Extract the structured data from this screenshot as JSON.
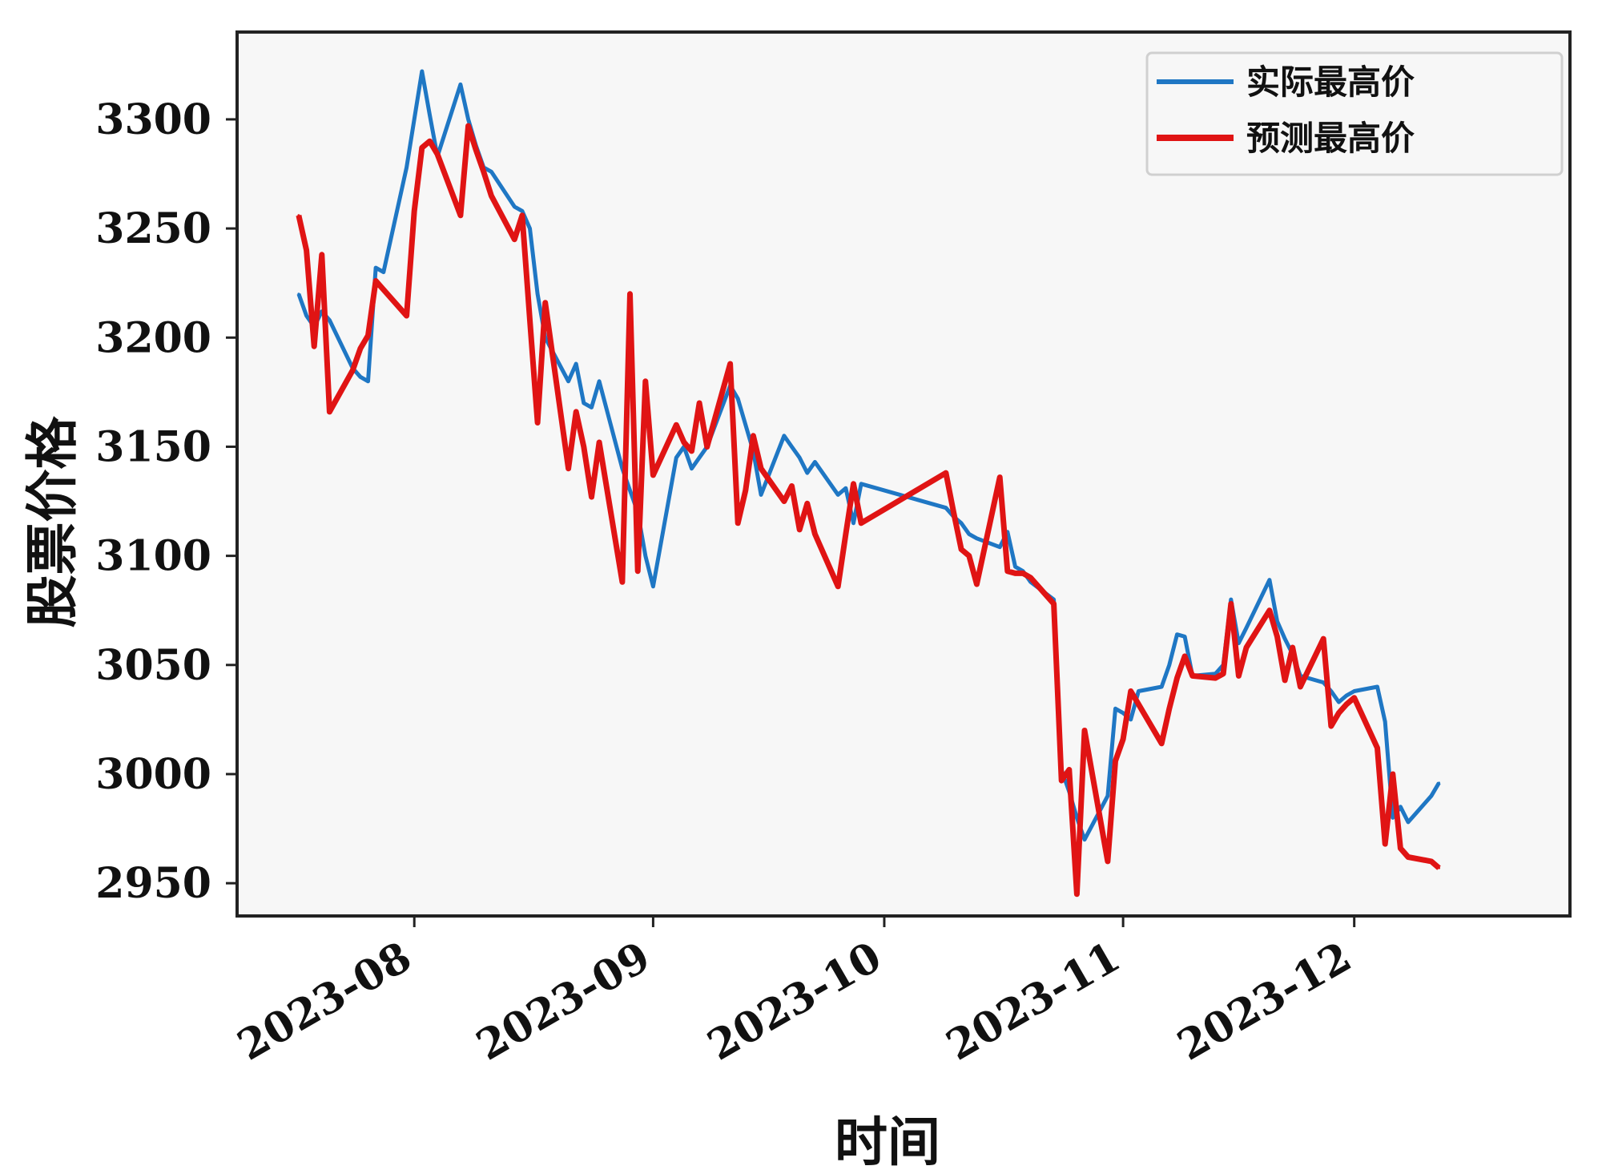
{
  "chart_data": {
    "type": "line",
    "xlabel": "时间",
    "ylabel": "股票价格",
    "ylim": [
      2935,
      3340
    ],
    "xlim": [
      "2023-07-09",
      "2023-12-29"
    ],
    "grid": false,
    "legend_position": "top-right",
    "x_ticks": [
      "2023-08",
      "2023-09",
      "2023-10",
      "2023-11",
      "2023-12"
    ],
    "y_ticks": [
      2950,
      3000,
      3050,
      3100,
      3150,
      3200,
      3250,
      3300
    ],
    "colors": {
      "actual": "#1f77c4",
      "predicted": "#e01414"
    },
    "series": [
      {
        "name": "实际最高价",
        "points": [
          [
            "2023-07-17",
            3220
          ],
          [
            "2023-07-18",
            3210
          ],
          [
            "2023-07-19",
            3205
          ],
          [
            "2023-07-20",
            3212
          ],
          [
            "2023-07-21",
            3208
          ],
          [
            "2023-07-24",
            3186
          ],
          [
            "2023-07-25",
            3182
          ],
          [
            "2023-07-26",
            3180
          ],
          [
            "2023-07-27",
            3232
          ],
          [
            "2023-07-28",
            3230
          ],
          [
            "2023-07-31",
            3278
          ],
          [
            "2023-08-01",
            3300
          ],
          [
            "2023-08-02",
            3322
          ],
          [
            "2023-08-03",
            3302
          ],
          [
            "2023-08-04",
            3283
          ],
          [
            "2023-08-07",
            3316
          ],
          [
            "2023-08-08",
            3300
          ],
          [
            "2023-08-09",
            3288
          ],
          [
            "2023-08-10",
            3278
          ],
          [
            "2023-08-11",
            3276
          ],
          [
            "2023-08-14",
            3260
          ],
          [
            "2023-08-15",
            3258
          ],
          [
            "2023-08-16",
            3250
          ],
          [
            "2023-08-17",
            3220
          ],
          [
            "2023-08-18",
            3200
          ],
          [
            "2023-08-21",
            3180
          ],
          [
            "2023-08-22",
            3188
          ],
          [
            "2023-08-23",
            3170
          ],
          [
            "2023-08-24",
            3168
          ],
          [
            "2023-08-25",
            3180
          ],
          [
            "2023-08-28",
            3140
          ],
          [
            "2023-08-29",
            3130
          ],
          [
            "2023-08-30",
            3120
          ],
          [
            "2023-08-31",
            3100
          ],
          [
            "2023-09-01",
            3086
          ],
          [
            "2023-09-04",
            3145
          ],
          [
            "2023-09-05",
            3150
          ],
          [
            "2023-09-06",
            3140
          ],
          [
            "2023-09-07",
            3145
          ],
          [
            "2023-09-08",
            3150
          ],
          [
            "2023-09-11",
            3178
          ],
          [
            "2023-09-12",
            3172
          ],
          [
            "2023-09-13",
            3160
          ],
          [
            "2023-09-14",
            3148
          ],
          [
            "2023-09-15",
            3128
          ],
          [
            "2023-09-18",
            3155
          ],
          [
            "2023-09-19",
            3150
          ],
          [
            "2023-09-20",
            3145
          ],
          [
            "2023-09-21",
            3138
          ],
          [
            "2023-09-22",
            3143
          ],
          [
            "2023-09-25",
            3128
          ],
          [
            "2023-09-26",
            3131
          ],
          [
            "2023-09-27",
            3115
          ],
          [
            "2023-09-28",
            3133
          ],
          [
            "2023-10-09",
            3122
          ],
          [
            "2023-10-10",
            3118
          ],
          [
            "2023-10-11",
            3115
          ],
          [
            "2023-10-12",
            3110
          ],
          [
            "2023-10-13",
            3108
          ],
          [
            "2023-10-16",
            3104
          ],
          [
            "2023-10-17",
            3111
          ],
          [
            "2023-10-18",
            3095
          ],
          [
            "2023-10-19",
            3093
          ],
          [
            "2023-10-20",
            3088
          ],
          [
            "2023-10-23",
            3080
          ],
          [
            "2023-10-24",
            3002
          ],
          [
            "2023-10-25",
            2992
          ],
          [
            "2023-10-26",
            2980
          ],
          [
            "2023-10-27",
            2970
          ],
          [
            "2023-10-30",
            2990
          ],
          [
            "2023-10-31",
            3030
          ],
          [
            "2023-11-01",
            3028
          ],
          [
            "2023-11-02",
            3025
          ],
          [
            "2023-11-03",
            3038
          ],
          [
            "2023-11-06",
            3040
          ],
          [
            "2023-11-07",
            3050
          ],
          [
            "2023-11-08",
            3064
          ],
          [
            "2023-11-09",
            3063
          ],
          [
            "2023-11-10",
            3045
          ],
          [
            "2023-11-13",
            3046
          ],
          [
            "2023-11-14",
            3050
          ],
          [
            "2023-11-15",
            3080
          ],
          [
            "2023-11-16",
            3060
          ],
          [
            "2023-11-17",
            3067
          ],
          [
            "2023-11-20",
            3089
          ],
          [
            "2023-11-21",
            3070
          ],
          [
            "2023-11-22",
            3062
          ],
          [
            "2023-11-23",
            3055
          ],
          [
            "2023-11-24",
            3045
          ],
          [
            "2023-11-27",
            3042
          ],
          [
            "2023-11-28",
            3038
          ],
          [
            "2023-11-29",
            3033
          ],
          [
            "2023-11-30",
            3036
          ],
          [
            "2023-12-01",
            3038
          ],
          [
            "2023-12-04",
            3040
          ],
          [
            "2023-12-05",
            3024
          ],
          [
            "2023-12-06",
            2980
          ],
          [
            "2023-12-07",
            2985
          ],
          [
            "2023-12-08",
            2978
          ],
          [
            "2023-12-11",
            2990
          ],
          [
            "2023-12-12",
            2996
          ]
        ]
      },
      {
        "name": "预测最高价",
        "points": [
          [
            "2023-07-17",
            3256
          ],
          [
            "2023-07-18",
            3240
          ],
          [
            "2023-07-19",
            3196
          ],
          [
            "2023-07-20",
            3238
          ],
          [
            "2023-07-21",
            3166
          ],
          [
            "2023-07-24",
            3185
          ],
          [
            "2023-07-25",
            3195
          ],
          [
            "2023-07-26",
            3201
          ],
          [
            "2023-07-27",
            3226
          ],
          [
            "2023-07-28",
            3222
          ],
          [
            "2023-07-31",
            3210
          ],
          [
            "2023-08-01",
            3258
          ],
          [
            "2023-08-02",
            3287
          ],
          [
            "2023-08-03",
            3290
          ],
          [
            "2023-08-04",
            3284
          ],
          [
            "2023-08-07",
            3256
          ],
          [
            "2023-08-08",
            3297
          ],
          [
            "2023-08-09",
            3286
          ],
          [
            "2023-08-10",
            3276
          ],
          [
            "2023-08-11",
            3265
          ],
          [
            "2023-08-14",
            3245
          ],
          [
            "2023-08-15",
            3256
          ],
          [
            "2023-08-16",
            3208
          ],
          [
            "2023-08-17",
            3161
          ],
          [
            "2023-08-18",
            3216
          ],
          [
            "2023-08-21",
            3140
          ],
          [
            "2023-08-22",
            3166
          ],
          [
            "2023-08-23",
            3150
          ],
          [
            "2023-08-24",
            3127
          ],
          [
            "2023-08-25",
            3152
          ],
          [
            "2023-08-28",
            3088
          ],
          [
            "2023-08-29",
            3220
          ],
          [
            "2023-08-30",
            3093
          ],
          [
            "2023-08-31",
            3180
          ],
          [
            "2023-09-01",
            3137
          ],
          [
            "2023-09-04",
            3160
          ],
          [
            "2023-09-05",
            3152
          ],
          [
            "2023-09-06",
            3148
          ],
          [
            "2023-09-07",
            3170
          ],
          [
            "2023-09-08",
            3150
          ],
          [
            "2023-09-11",
            3188
          ],
          [
            "2023-09-12",
            3115
          ],
          [
            "2023-09-13",
            3130
          ],
          [
            "2023-09-14",
            3155
          ],
          [
            "2023-09-15",
            3140
          ],
          [
            "2023-09-18",
            3125
          ],
          [
            "2023-09-19",
            3132
          ],
          [
            "2023-09-20",
            3112
          ],
          [
            "2023-09-21",
            3124
          ],
          [
            "2023-09-22",
            3110
          ],
          [
            "2023-09-25",
            3086
          ],
          [
            "2023-09-26",
            3110
          ],
          [
            "2023-09-27",
            3133
          ],
          [
            "2023-09-28",
            3115
          ],
          [
            "2023-10-09",
            3138
          ],
          [
            "2023-10-10",
            3120
          ],
          [
            "2023-10-11",
            3103
          ],
          [
            "2023-10-12",
            3100
          ],
          [
            "2023-10-13",
            3087
          ],
          [
            "2023-10-16",
            3136
          ],
          [
            "2023-10-17",
            3093
          ],
          [
            "2023-10-18",
            3092
          ],
          [
            "2023-10-19",
            3092
          ],
          [
            "2023-10-20",
            3090
          ],
          [
            "2023-10-23",
            3078
          ],
          [
            "2023-10-24",
            2997
          ],
          [
            "2023-10-25",
            3002
          ],
          [
            "2023-10-26",
            2945
          ],
          [
            "2023-10-27",
            3020
          ],
          [
            "2023-10-30",
            2960
          ],
          [
            "2023-10-31",
            3006
          ],
          [
            "2023-11-01",
            3016
          ],
          [
            "2023-11-02",
            3038
          ],
          [
            "2023-11-03",
            3032
          ],
          [
            "2023-11-06",
            3014
          ],
          [
            "2023-11-07",
            3030
          ],
          [
            "2023-11-08",
            3044
          ],
          [
            "2023-11-09",
            3054
          ],
          [
            "2023-11-10",
            3045
          ],
          [
            "2023-11-13",
            3044
          ],
          [
            "2023-11-14",
            3046
          ],
          [
            "2023-11-15",
            3078
          ],
          [
            "2023-11-16",
            3045
          ],
          [
            "2023-11-17",
            3058
          ],
          [
            "2023-11-20",
            3075
          ],
          [
            "2023-11-21",
            3063
          ],
          [
            "2023-11-22",
            3043
          ],
          [
            "2023-11-23",
            3058
          ],
          [
            "2023-11-24",
            3040
          ],
          [
            "2023-11-27",
            3062
          ],
          [
            "2023-11-28",
            3022
          ],
          [
            "2023-11-29",
            3028
          ],
          [
            "2023-11-30",
            3032
          ],
          [
            "2023-12-01",
            3035
          ],
          [
            "2023-12-04",
            3012
          ],
          [
            "2023-12-05",
            2968
          ],
          [
            "2023-12-06",
            3000
          ],
          [
            "2023-12-07",
            2966
          ],
          [
            "2023-12-08",
            2962
          ],
          [
            "2023-12-11",
            2960
          ],
          [
            "2023-12-12",
            2957
          ]
        ]
      }
    ]
  }
}
